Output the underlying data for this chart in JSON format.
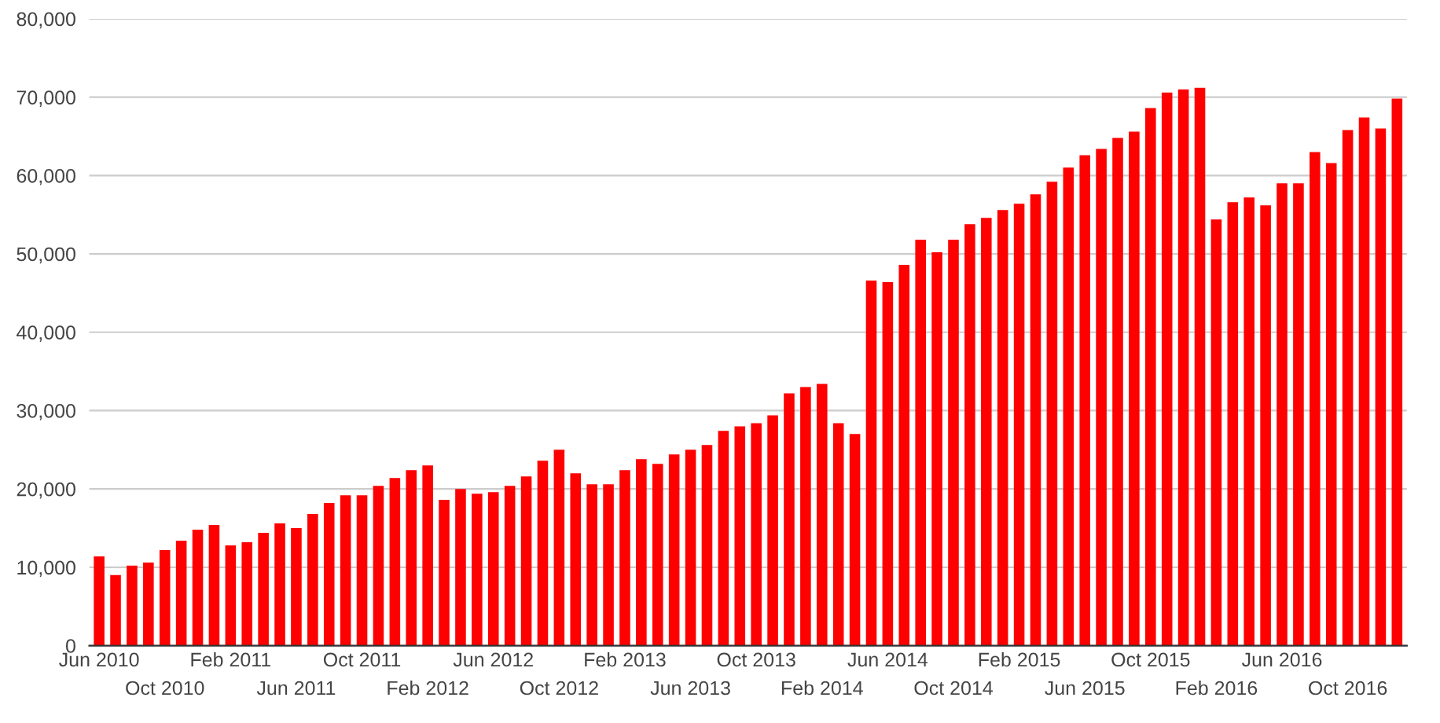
{
  "chart_data": {
    "type": "bar",
    "color": "#ff0000",
    "grid": "y",
    "categories": [
      "Jun 2010",
      null,
      null,
      null,
      "Oct 2010",
      null,
      null,
      null,
      "Feb 2011",
      null,
      null,
      null,
      "Jun 2011",
      null,
      null,
      null,
      "Oct 2011",
      null,
      null,
      null,
      "Feb 2012",
      null,
      null,
      null,
      "Jun 2012",
      null,
      null,
      null,
      "Oct 2012",
      null,
      null,
      null,
      "Feb 2013",
      null,
      null,
      null,
      "Jun 2013",
      null,
      null,
      null,
      "Oct 2013",
      null,
      null,
      null,
      "Feb 2014",
      null,
      null,
      null,
      "Jun 2014",
      null,
      null,
      null,
      "Oct 2014",
      null,
      null,
      null,
      "Feb 2015",
      null,
      null,
      null,
      "Jun 2015",
      null,
      null,
      null,
      "Oct 2015",
      null,
      null,
      null,
      "Feb 2016",
      null,
      null,
      null,
      "Jun 2016",
      null,
      null,
      null,
      "Oct 2016",
      null,
      null,
      null
    ],
    "values": [
      11400,
      9000,
      10200,
      10600,
      12200,
      13400,
      14800,
      15400,
      12800,
      13200,
      14400,
      15600,
      15000,
      16800,
      18200,
      19200,
      19200,
      20400,
      21400,
      22400,
      23000,
      18600,
      20000,
      19400,
      19600,
      20400,
      21600,
      23600,
      25000,
      22000,
      20600,
      20600,
      22400,
      23800,
      23200,
      24400,
      25000,
      25600,
      27400,
      28000,
      28400,
      29400,
      32200,
      33000,
      33400,
      28400,
      27000,
      46600,
      46400,
      48600,
      51800,
      50200,
      51800,
      53800,
      54600,
      55600,
      56400,
      57600,
      59200,
      61000,
      62600,
      63400,
      64800,
      65600,
      68600,
      70600,
      71000,
      71200,
      54400,
      56600,
      57200,
      56200,
      59000,
      59000,
      63000,
      61600,
      65800,
      67400,
      66000,
      69800
    ],
    "ylim": [
      0,
      80000
    ],
    "yticks": [
      {
        "value": 0,
        "label": "0"
      },
      {
        "value": 10000,
        "label": "10,000"
      },
      {
        "value": 20000,
        "label": "20,000"
      },
      {
        "value": 30000,
        "label": "30,000"
      },
      {
        "value": 40000,
        "label": "40,000"
      },
      {
        "value": 50000,
        "label": "50,000"
      },
      {
        "value": 60000,
        "label": "60,000"
      },
      {
        "value": 70000,
        "label": "70,000"
      },
      {
        "value": 80000,
        "label": "80,000"
      }
    ]
  }
}
